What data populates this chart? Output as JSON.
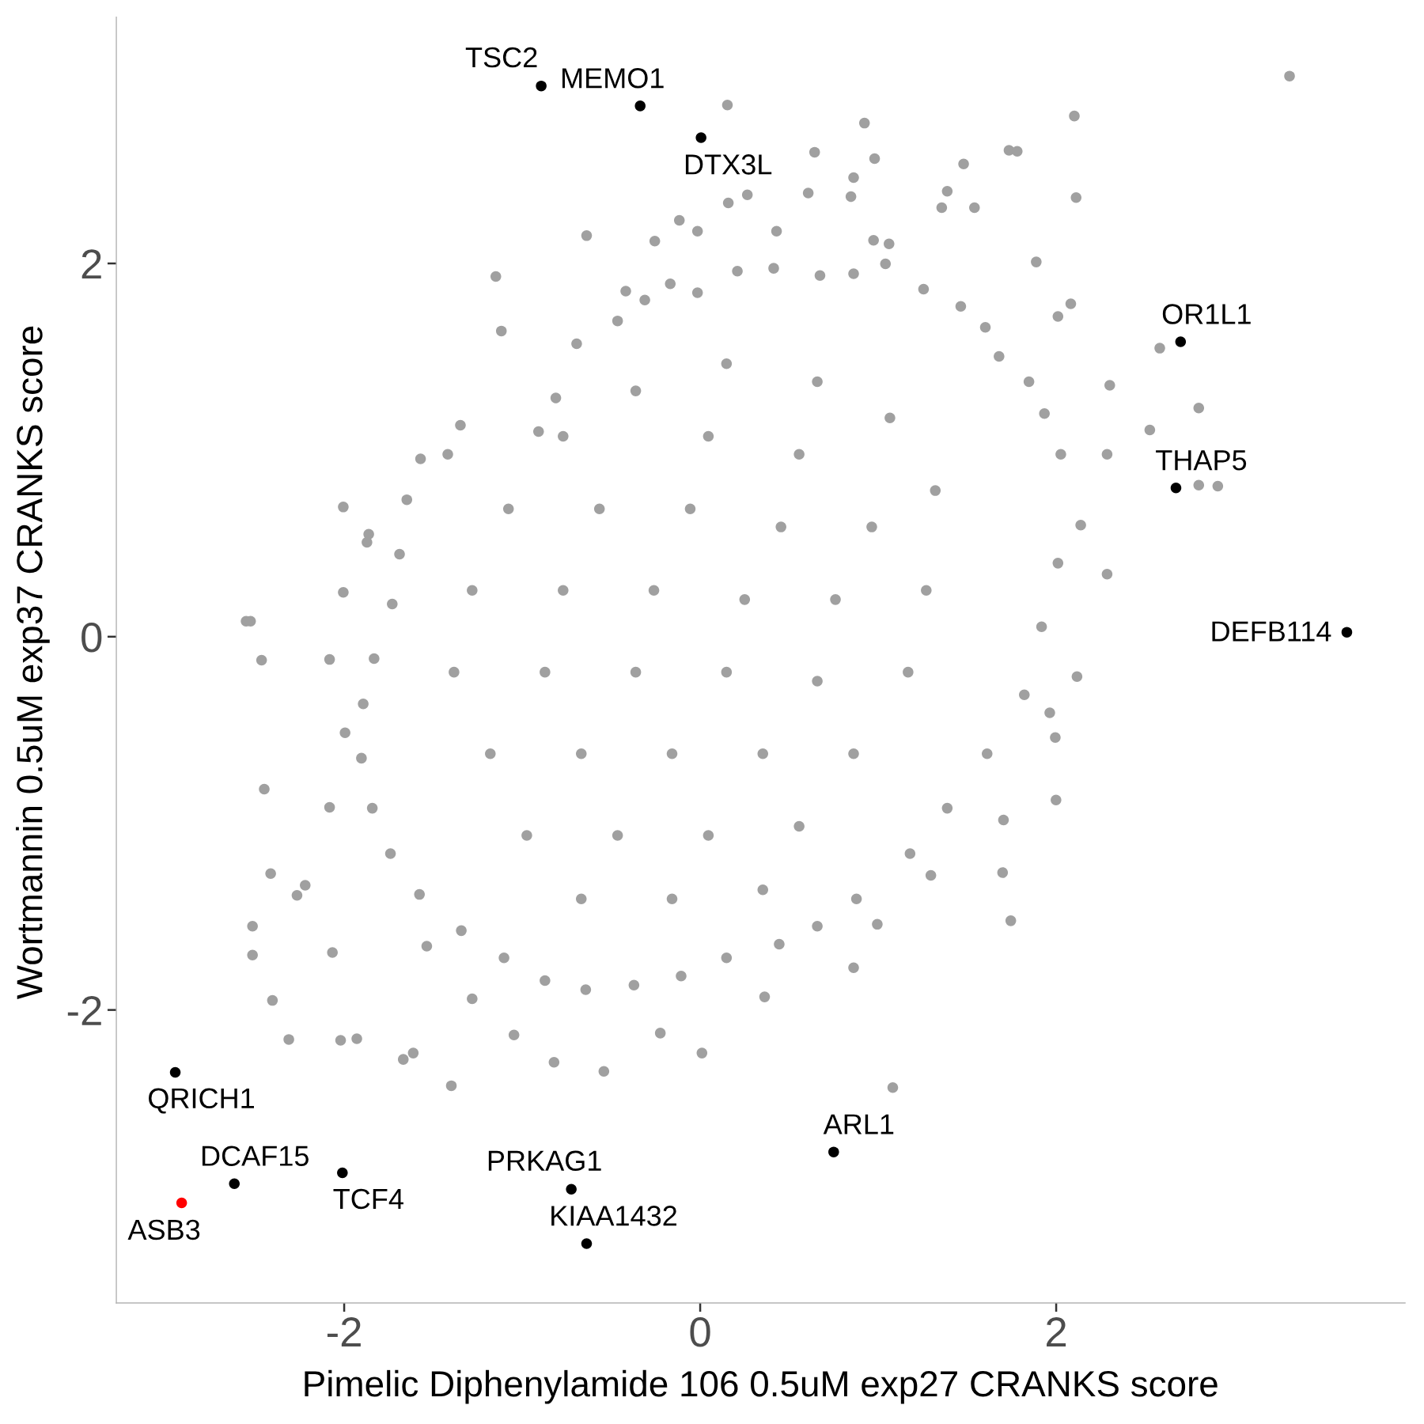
{
  "chart_data": {
    "type": "scatter",
    "xlabel": "Pimelic Diphenylamide 106 0.5uM exp27 CRANKS score",
    "ylabel": "Wortmannin 0.5uM exp37 CRANKS score",
    "xlim": [
      -3.28,
      3.96
    ],
    "ylim": [
      -3.57,
      3.32
    ],
    "xticks": [
      -2,
      0,
      2
    ],
    "yticks": [
      -2,
      0,
      2
    ],
    "marker": "circle",
    "series": [
      {
        "color": "#a0a0a0",
        "x": [
          3.311,
          0.153,
          0.923,
          2.102,
          1.735,
          1.781,
          0.643,
          0.98,
          1.48,
          0.862,
          1.388,
          0.607,
          0.847,
          0.265,
          0.158,
          2.112,
          1.357,
          1.541,
          -0.117,
          -0.015,
          -0.638,
          -0.255,
          0.429,
          0.974,
          1.061,
          1.888,
          -1.148,
          -0.418,
          2.082,
          2.01,
          -1.117,
          2.582,
          2.801,
          2.301,
          2.526,
          2.801,
          2.908,
          2.286,
          2.286,
          2.117,
          1.995,
          1.964,
          1.999,
          1.704,
          1.699,
          1.745,
          1.296,
          1.082,
          0.862,
          0.995,
          0.362,
          0.01,
          -0.224,
          -0.541,
          -0.821,
          -1.398,
          -1.668,
          -1.612,
          -2.02,
          -1.929,
          -2.311,
          -2.403,
          -2.515,
          -2.515,
          -2.265,
          -2.219,
          -2.413,
          -2.449,
          -2.464,
          -2.551,
          -2.526,
          -2.066,
          -2.005,
          -2.005,
          -1.862,
          -1.872,
          -1.995,
          -2.082,
          -2.082,
          -1.536,
          -1.281,
          -1.046,
          -1.571,
          -1.418,
          -1.347,
          -0.908,
          -0.811,
          -0.694,
          -0.464,
          -0.311,
          -0.168,
          -0.015,
          0.209,
          0.413,
          0.673,
          0.862,
          1.041,
          1.255,
          1.464,
          1.602,
          1.679,
          1.847,
          1.934,
          2.026,
          2.138,
          2.01,
          1.918,
          1.821,
          1.612,
          1.388,
          1.179,
          0.878,
          0.658,
          0.444,
          0.148,
          -0.107,
          -0.372,
          -0.643,
          -0.872,
          -1.102,
          -1.342,
          -1.577,
          -1.74,
          -1.842,
          -1.903,
          -1.893,
          -1.832,
          -1.73,
          -1.689,
          -1.648,
          0.148,
          0.658,
          -0.362,
          -0.77,
          0.046,
          0.556,
          1.066,
          1.321,
          -1.077,
          -0.566,
          -0.056,
          0.454,
          0.964,
          -1.281,
          -0.77,
          -0.26,
          0.25,
          0.76,
          1.27,
          -1.383,
          -0.872,
          -0.362,
          0.148,
          0.658,
          1.168,
          -1.179,
          -0.668,
          -0.158,
          0.352,
          0.862,
          -0.974,
          -0.464,
          0.046,
          0.556,
          -0.668,
          -0.158,
          0.352
        ],
        "values": [
          3.004,
          2.849,
          2.752,
          2.79,
          2.606,
          2.601,
          2.596,
          2.562,
          2.533,
          2.46,
          2.387,
          2.377,
          2.358,
          2.368,
          2.324,
          2.353,
          2.299,
          2.299,
          2.231,
          2.173,
          2.149,
          2.12,
          2.173,
          2.124,
          2.105,
          2.008,
          1.93,
          1.852,
          1.784,
          1.716,
          1.638,
          1.546,
          1.225,
          1.347,
          1.108,
          0.812,
          0.807,
          0.977,
          0.335,
          -0.214,
          -0.54,
          -0.408,
          -0.875,
          -0.982,
          -1.264,
          -1.522,
          -1.279,
          -2.416,
          -1.774,
          -1.541,
          -1.93,
          -2.231,
          -2.124,
          -2.329,
          -2.28,
          -2.406,
          -2.265,
          -2.231,
          -2.163,
          -2.154,
          -2.158,
          -1.949,
          -1.706,
          -1.551,
          -1.386,
          -1.332,
          -1.269,
          -0.817,
          -0.126,
          0.083,
          0.083,
          -1.692,
          0.238,
          0.695,
          0.549,
          0.506,
          -0.515,
          -0.122,
          -0.914,
          -1.658,
          -1.94,
          -2.134,
          0.953,
          0.977,
          1.133,
          1.099,
          1.279,
          1.57,
          1.692,
          1.804,
          1.891,
          1.843,
          1.959,
          1.974,
          1.935,
          1.945,
          1.998,
          1.862,
          1.77,
          1.658,
          1.502,
          1.366,
          1.196,
          0.977,
          0.598,
          0.394,
          0.053,
          -0.311,
          -0.627,
          -0.919,
          -1.162,
          -1.405,
          -1.551,
          -1.648,
          -1.721,
          -1.818,
          -1.867,
          -1.891,
          -1.843,
          -1.721,
          -1.575,
          -1.381,
          -1.162,
          -0.919,
          -0.651,
          -0.36,
          -0.117,
          0.175,
          0.442,
          0.734,
          1.463,
          1.366,
          1.317,
          1.074,
          1.074,
          0.977,
          1.172,
          0.783,
          0.685,
          0.685,
          0.685,
          0.588,
          0.588,
          0.248,
          0.248,
          0.248,
          0.199,
          0.199,
          0.248,
          -0.19,
          -0.19,
          -0.19,
          -0.19,
          -0.238,
          -0.19,
          -0.627,
          -0.627,
          -0.627,
          -0.627,
          -0.627,
          -1.065,
          -1.065,
          -1.065,
          -1.016,
          -1.405,
          -1.405,
          -1.356
        ]
      },
      {
        "color": "#000000",
        "x": [
          -0.893,
          -0.337,
          0.005,
          2.699,
          2.673,
          3.633,
          -2.949,
          -2.617,
          -2.01,
          -0.724,
          -0.638,
          0.75
        ],
        "values": [
          2.951,
          2.844,
          2.674,
          1.58,
          0.797,
          0.024,
          -2.334,
          -2.931,
          -2.873,
          -2.961,
          -3.252,
          -2.761
        ]
      },
      {
        "color": "#ff0000",
        "x": [
          -2.913
        ],
        "values": [
          -3.034
        ]
      }
    ],
    "annotations": [
      {
        "text": "TSC2",
        "x": -0.893,
        "y": 2.951
      },
      {
        "text": "MEMO1",
        "x": -0.337,
        "y": 2.844
      },
      {
        "text": "DTX3L",
        "x": 0.005,
        "y": 2.674
      },
      {
        "text": "OR1L1",
        "x": 2.699,
        "y": 1.58
      },
      {
        "text": "THAP5",
        "x": 2.673,
        "y": 0.797
      },
      {
        "text": "DEFB114",
        "x": 3.633,
        "y": 0.024
      },
      {
        "text": "QRICH1",
        "x": -2.949,
        "y": -2.334
      },
      {
        "text": "DCAF15",
        "x": -2.617,
        "y": -2.931
      },
      {
        "text": "ASB3",
        "x": -2.913,
        "y": -3.034
      },
      {
        "text": "TCF4",
        "x": -2.01,
        "y": -2.873
      },
      {
        "text": "PRKAG1",
        "x": -0.724,
        "y": -2.961
      },
      {
        "text": "KIAA1432",
        "x": -0.638,
        "y": -3.252
      },
      {
        "text": "ARL1",
        "x": 0.75,
        "y": -2.761
      }
    ]
  }
}
